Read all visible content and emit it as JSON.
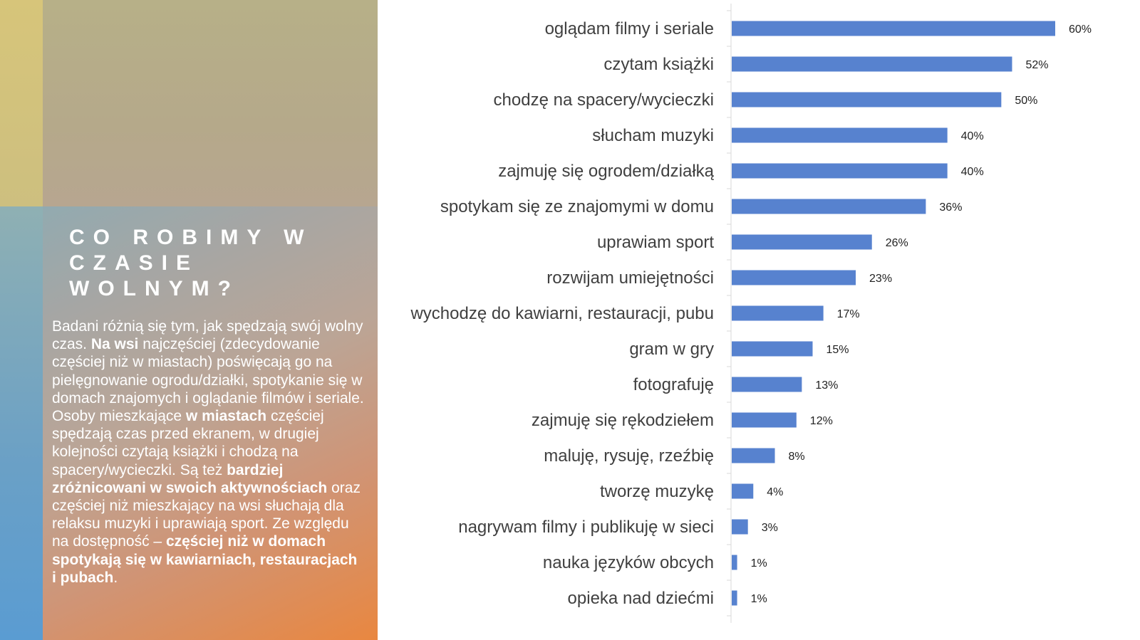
{
  "panel": {
    "title": "CO ROBIMY W\nCZASIE\nWOLNYM?",
    "body": [
      {
        "t": "Badani różnią się tym, jak spędzają swój wolny czas. ",
        "b": false
      },
      {
        "t": "Na wsi",
        "b": true
      },
      {
        "t": " najczęściej (zdecydowanie częściej niż w miastach) poświęcają go na pielęgnowanie ogrodu/działki, spotykanie się w domach znajomych i oglądanie filmów i seriale. Osoby mieszkające ",
        "b": false
      },
      {
        "t": "w miastach",
        "b": true
      },
      {
        "t": " częściej spędzają czas przed ekranem, w drugiej kolejności czytają książki i chodzą na spacery/wycieczki. Są też ",
        "b": false
      },
      {
        "t": "bardziej zróżnicowani w swoich aktywnościach",
        "b": true
      },
      {
        "t": " oraz częściej niż mieszkający na wsi słuchają dla relaksu muzyki i uprawiają sport. Ze względu na dostępność – ",
        "b": false
      },
      {
        "t": "częściej niż w domach spotykają  się w kawiarniach, restauracjach i pubach",
        "b": true
      },
      {
        "t": ".",
        "b": false
      }
    ],
    "colors": {
      "text": "#ffffff"
    }
  },
  "chart_data": {
    "type": "bar",
    "orientation": "horizontal",
    "title": "",
    "xlabel": "",
    "ylabel": "",
    "xlim": [
      0,
      60
    ],
    "bar_color": "#5782cf",
    "categories": [
      "oglądam filmy i seriale",
      "czytam książki",
      "chodzę na spacery/wycieczki",
      "słucham muzyki",
      "zajmuję się ogrodem/działką",
      "spotykam się ze znajomymi w domu",
      "uprawiam sport",
      "rozwijam umiejętności",
      "wychodzę do kawiarni, restauracji, pubu",
      "gram w gry ",
      "fotografuję",
      "zajmuję się rękodziełem",
      "maluję, rysuję, rzeźbię",
      "tworzę muzykę",
      "nagrywam filmy i publikuję w sieci",
      "nauka języków obcych",
      "opieka nad dziećmi"
    ],
    "values": [
      60,
      52,
      50,
      40,
      40,
      36,
      26,
      23,
      17,
      15,
      13,
      12,
      8,
      4,
      3,
      1,
      1
    ],
    "value_labels": [
      "60%",
      "52%",
      "50%",
      "40%",
      "40%",
      "36%",
      "26%",
      "23%",
      "17%",
      "15%",
      "13%",
      "12%",
      "8%",
      "4%",
      "3%",
      "1%",
      "1%"
    ]
  }
}
